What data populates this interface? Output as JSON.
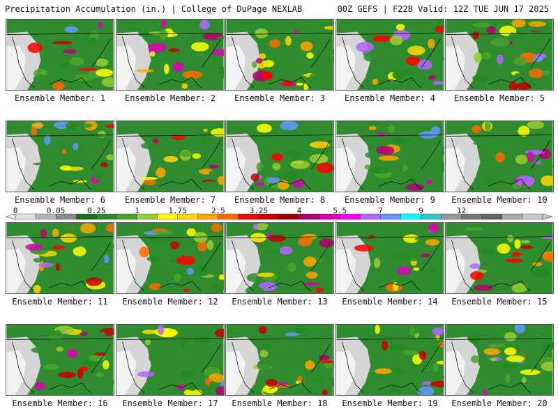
{
  "header": {
    "title": "Precipitation Accumulation (in.) | College of DuPage NEXLAB",
    "run_info": "00Z GEFS | F228 Valid: 12Z TUE JUN 17 2025"
  },
  "panels": [
    {
      "label": "Ensemble Member: 1"
    },
    {
      "label": "Ensemble Member: 2"
    },
    {
      "label": "Ensemble Member: 3"
    },
    {
      "label": "Ensemble Member: 4"
    },
    {
      "label": "Ensemble Member: 5"
    },
    {
      "label": "Ensemble Member: 6"
    },
    {
      "label": "Ensemble Member: 7"
    },
    {
      "label": "Ensemble Member: 8"
    },
    {
      "label": "Ensemble Member: 9"
    },
    {
      "label": "Ensemble Member: 10"
    },
    {
      "label": "Ensemble Member: 11"
    },
    {
      "label": "Ensemble Member: 12"
    },
    {
      "label": "Ensemble Member: 13"
    },
    {
      "label": "Ensemble Member: 14"
    },
    {
      "label": "Ensemble Member: 15"
    },
    {
      "label": "Ensemble Member: 16"
    },
    {
      "label": "Ensemble Member: 17"
    },
    {
      "label": "Ensemble Member: 18"
    },
    {
      "label": "Ensemble Member: 19"
    },
    {
      "label": "Ensemble Member: 20"
    }
  ],
  "colorbar": {
    "labels": [
      "0",
      "0.05",
      "0.25",
      "1",
      "1.75",
      "2.5",
      "3.25",
      "4",
      "5.5",
      "7",
      "9",
      "12"
    ],
    "colors": [
      "#e0e0e0",
      "#b4b4b4",
      "#8c8c8c",
      "#1e6e1e",
      "#2e8b2e",
      "#4aa52a",
      "#9acd32",
      "#ffff00",
      "#ffd700",
      "#ffa500",
      "#ff6a00",
      "#ff0000",
      "#c80000",
      "#960000",
      "#b4006e",
      "#dc00b4",
      "#ff00ff",
      "#b464ff",
      "#6496ff",
      "#00ffff",
      "#32c8c8",
      "#969696",
      "#787878",
      "#646464",
      "#aaaaaa",
      "#c8c8c8"
    ]
  }
}
